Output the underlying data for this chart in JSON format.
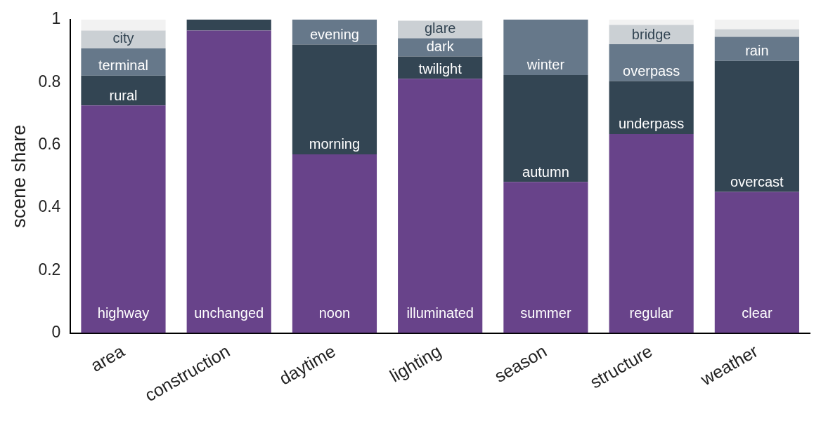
{
  "chart_data": {
    "type": "bar",
    "stacked": true,
    "ylabel": "scene share",
    "categories": [
      "area",
      "construction",
      "daytime",
      "lighting",
      "season",
      "structure",
      "weather"
    ],
    "ylim": [
      0,
      1
    ],
    "yticks": [
      0,
      0.2,
      0.4,
      0.6,
      0.8,
      1
    ],
    "grid": false,
    "legend": false,
    "series": [
      {
        "color": "#68438a",
        "values": [
          0.726,
          0.965,
          0.57,
          0.811,
          0.482,
          0.635,
          0.45
        ],
        "value_labels": [
          "highway",
          "unchanged",
          "noon",
          "illuminated",
          "summer",
          "regular",
          "clear"
        ]
      },
      {
        "color": "#334553",
        "values": [
          0.095,
          0.035,
          0.35,
          0.071,
          0.341,
          0.169,
          0.418
        ],
        "value_labels": [
          "rural",
          null,
          "morning",
          "twilight",
          "autumn",
          "underpass",
          "overcast"
        ]
      },
      {
        "color": "#66788a",
        "values": [
          0.087,
          null,
          0.08,
          0.058,
          0.177,
          0.117,
          0.077
        ],
        "value_labels": [
          "terminal",
          null,
          "evening",
          "dark",
          "winter",
          "overpass",
          "rain"
        ]
      },
      {
        "color": "#cbd0d4",
        "values": [
          0.057,
          null,
          null,
          0.056,
          null,
          0.062,
          0.024
        ],
        "value_labels": [
          "city",
          null,
          null,
          "glare",
          null,
          "bridge",
          null
        ]
      },
      {
        "color": "#f2f2f2",
        "values": [
          0.035,
          null,
          null,
          null,
          null,
          0.017,
          0.031
        ],
        "value_labels": [
          null,
          null,
          null,
          null,
          null,
          null,
          null
        ]
      }
    ]
  }
}
